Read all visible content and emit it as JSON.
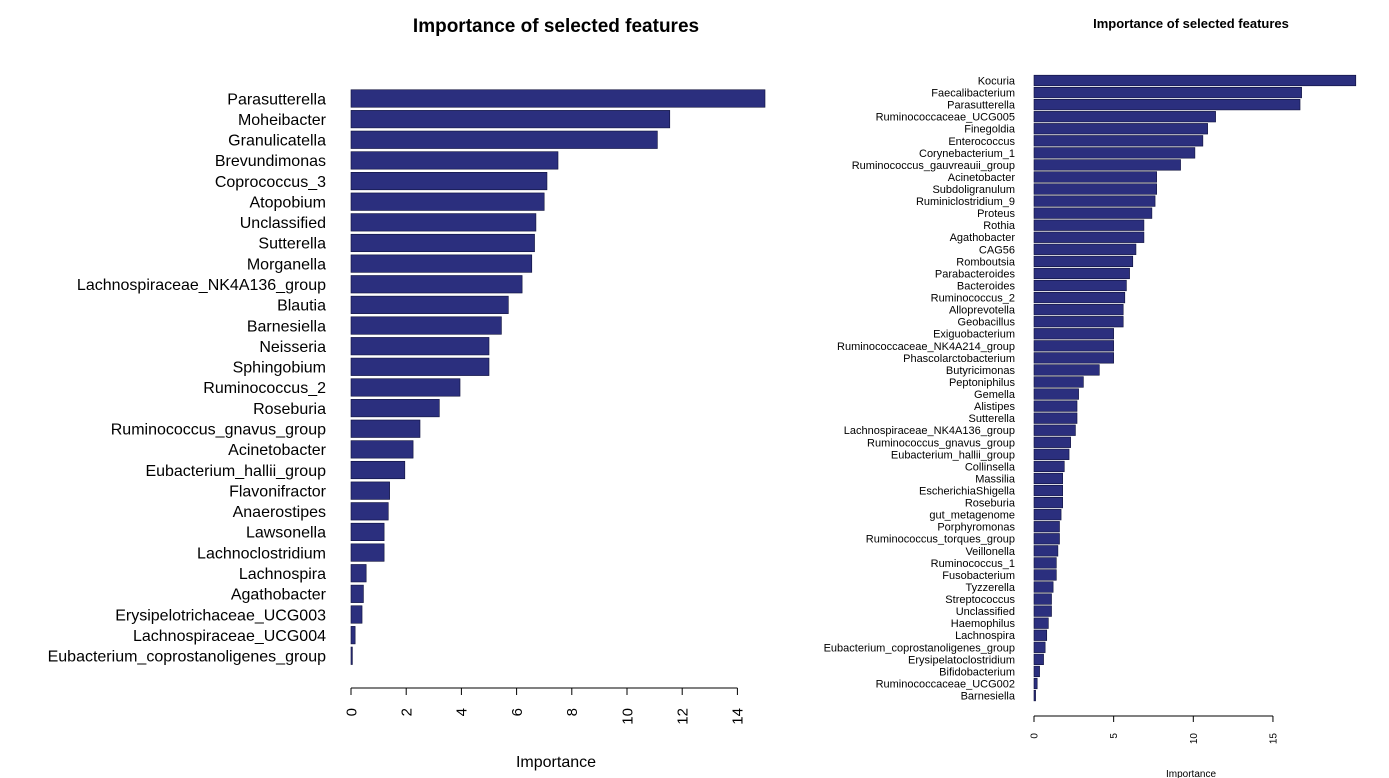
{
  "colors": {
    "bar": "#2b2f7e",
    "axis": "#000000",
    "background": "#ffffff"
  },
  "chart_data": [
    {
      "type": "bar",
      "orientation": "horizontal",
      "title": "Importance of selected features",
      "xlabel": "Importance",
      "xlim": [
        0,
        15
      ],
      "xticks": [
        "0",
        "2",
        "4",
        "6",
        "8",
        "10",
        "12",
        "14"
      ],
      "grid": false,
      "categories": [
        "Parasutterella",
        "Moheibacter",
        "Granulicatella",
        "Brevundimonas",
        "Coprococcus_3",
        "Atopobium",
        "Unclassified",
        "Sutterella",
        "Morganella",
        "Lachnospiraceae_NK4A136_group",
        "Blautia",
        "Barnesiella",
        "Neisseria",
        "Sphingobium",
        "Ruminococcus_2",
        "Roseburia",
        "Ruminococcus_gnavus_group",
        "Acinetobacter",
        "Eubacterium_hallii_group",
        "Flavonifractor",
        "Anaerostipes",
        "Lawsonella",
        "Lachnoclostridium",
        "Lachnospira",
        "Agathobacter",
        "Erysipelotrichaceae_UCG003",
        "Lachnospiraceae_UCG004",
        "Eubacterium_coprostanoligenes_group"
      ],
      "values": [
        15.0,
        11.55,
        11.1,
        7.5,
        7.1,
        7.0,
        6.7,
        6.65,
        6.55,
        6.2,
        5.7,
        5.45,
        5.0,
        5.0,
        3.95,
        3.2,
        2.5,
        2.25,
        1.95,
        1.4,
        1.35,
        1.2,
        1.2,
        0.55,
        0.45,
        0.4,
        0.15,
        0.05
      ]
    },
    {
      "type": "bar",
      "orientation": "horizontal",
      "title": "Importance of selected features",
      "xlabel": "Importance",
      "xlim": [
        0,
        20
      ],
      "xticks": [
        "0",
        "5",
        "10",
        "15"
      ],
      "grid": false,
      "categories": [
        "Kocuria",
        "Faecalibacterium",
        "Parasutterella",
        "Ruminococcaceae_UCG005",
        "Finegoldia",
        "Enterococcus",
        "Corynebacterium_1",
        "Ruminococcus_gauvreauii_group",
        "Acinetobacter",
        "Subdoligranulum",
        "Ruminiclostridium_9",
        "Proteus",
        "Rothia",
        "Agathobacter",
        "CAG56",
        "Romboutsia",
        "Parabacteroides",
        "Bacteroides",
        "Ruminococcus_2",
        "Alloprevotella",
        "Geobacillus",
        "Exiguobacterium",
        "Ruminococcaceae_NK4A214_group",
        "Phascolarctobacterium",
        "Butyricimonas",
        "Peptoniphilus",
        "Gemella",
        "Alistipes",
        "Sutterella",
        "Lachnospiraceae_NK4A136_group",
        "Ruminococcus_gnavus_group",
        "Eubacterium_hallii_group",
        "Collinsella",
        "Massilia",
        "EscherichiaShigella",
        "Roseburia",
        "gut_metagenome",
        "Porphyromonas",
        "Ruminococcus_torques_group",
        "Veillonella",
        "Ruminococcus_1",
        "Fusobacterium",
        "Tyzzerella",
        "Streptococcus",
        "Unclassified",
        "Haemophilus",
        "Lachnospira",
        "Eubacterium_coprostanoligenes_group",
        "Erysipelatoclostridium",
        "Bifidobacterium",
        "Ruminococcaceae_UCG002",
        "Barnesiella"
      ],
      "values": [
        20.2,
        16.8,
        16.7,
        11.4,
        10.9,
        10.6,
        10.1,
        9.2,
        7.7,
        7.7,
        7.6,
        7.4,
        6.9,
        6.9,
        6.4,
        6.2,
        6.0,
        5.8,
        5.7,
        5.6,
        5.6,
        5.0,
        5.0,
        5.0,
        4.1,
        3.1,
        2.8,
        2.7,
        2.7,
        2.6,
        2.3,
        2.2,
        1.9,
        1.8,
        1.8,
        1.8,
        1.7,
        1.6,
        1.6,
        1.5,
        1.4,
        1.4,
        1.2,
        1.1,
        1.1,
        0.9,
        0.8,
        0.7,
        0.6,
        0.35,
        0.2,
        0.1
      ]
    }
  ]
}
